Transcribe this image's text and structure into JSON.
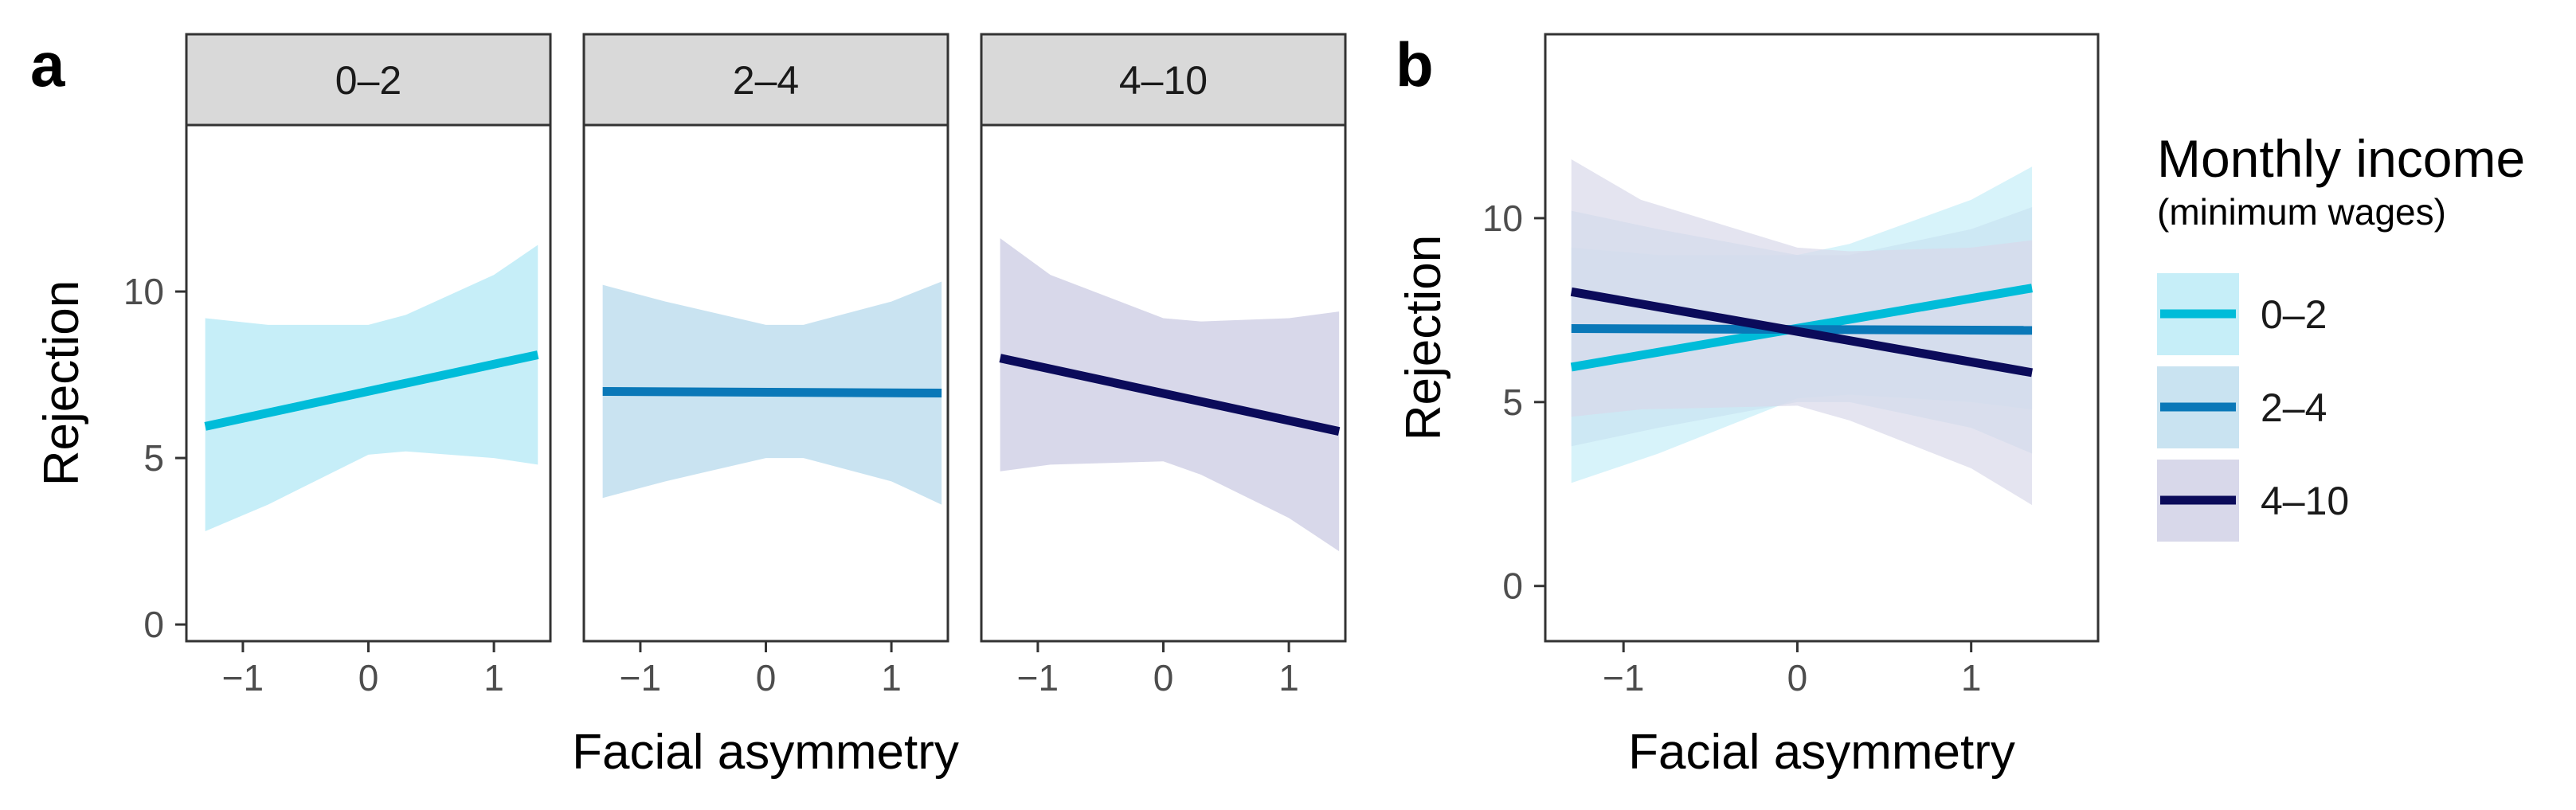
{
  "panel_labels": {
    "a": "a",
    "b": "b"
  },
  "legend": {
    "title": "Monthly income",
    "subtitle": "(minimum wages)"
  },
  "colors": {
    "0–2": "#00bcd9",
    "2–4": "#0a78b8",
    "4–10": "#0b0b5a",
    "band_0–2": "#c6eef8",
    "band_2–4": "#c9e3f1",
    "band_4–10": "#d8d8ea",
    "strip": "#d9d9d9"
  },
  "chart_data": [
    {
      "type": "line",
      "panel": "a",
      "layout": "facet",
      "xlabel": "Facial asymmetry",
      "ylabel": "Rejection",
      "xlim": [
        -1.45,
        1.45
      ],
      "ylim": [
        -0.5,
        15
      ],
      "xticks": [
        -1,
        0,
        1
      ],
      "yticks": [
        0,
        5,
        10
      ],
      "xtick_labels": [
        "−1",
        "0",
        "1"
      ],
      "ytick_labels": [
        "0",
        "5",
        "10"
      ],
      "grid": false,
      "series": [
        {
          "name": "0–2",
          "x": [
            -1.3,
            1.35
          ],
          "y": [
            5.95,
            8.1
          ],
          "band_x": [
            -1.3,
            -0.8,
            0,
            0.3,
            1.0,
            1.35
          ],
          "band_upper": [
            9.2,
            9.0,
            9.0,
            9.3,
            10.5,
            11.4
          ],
          "band_lower": [
            2.8,
            3.6,
            5.1,
            5.2,
            5.0,
            4.8
          ]
        },
        {
          "name": "2–4",
          "x": [
            -1.3,
            1.4
          ],
          "y": [
            7.0,
            6.95
          ],
          "band_x": [
            -1.3,
            -0.8,
            0,
            0.3,
            1.0,
            1.4
          ],
          "band_upper": [
            10.2,
            9.7,
            9.0,
            9.0,
            9.7,
            10.3
          ],
          "band_lower": [
            3.8,
            4.3,
            5.0,
            5.0,
            4.3,
            3.6
          ]
        },
        {
          "name": "4–10",
          "x": [
            -1.3,
            1.4
          ],
          "y": [
            8.0,
            5.8
          ],
          "band_x": [
            -1.3,
            -0.9,
            0,
            0.3,
            1.0,
            1.4
          ],
          "band_upper": [
            11.6,
            10.5,
            9.2,
            9.1,
            9.2,
            9.4
          ],
          "band_lower": [
            4.6,
            4.8,
            4.9,
            4.5,
            3.2,
            2.2
          ]
        }
      ],
      "facets": [
        "0–2",
        "2–4",
        "4–10"
      ]
    },
    {
      "type": "line",
      "panel": "b",
      "layout": "overlay",
      "xlabel": "Facial asymmetry",
      "ylabel": "Rejection",
      "xlim": [
        -1.45,
        1.73
      ],
      "ylim": [
        -1.5,
        15
      ],
      "xticks": [
        -1,
        0,
        1
      ],
      "yticks": [
        0,
        5,
        10
      ],
      "xtick_labels": [
        "−1",
        "0",
        "1"
      ],
      "ytick_labels": [
        "0",
        "5",
        "10"
      ],
      "grid": false,
      "legend_position": "right",
      "series": [
        {
          "name": "0–2",
          "x": [
            -1.3,
            1.35
          ],
          "y": [
            5.95,
            8.1
          ],
          "band_x": [
            -1.3,
            -0.8,
            0,
            0.3,
            1.0,
            1.35
          ],
          "band_upper": [
            9.2,
            9.0,
            9.0,
            9.3,
            10.5,
            11.4
          ],
          "band_lower": [
            2.8,
            3.6,
            5.1,
            5.2,
            5.0,
            4.8
          ]
        },
        {
          "name": "2–4",
          "x": [
            -1.3,
            1.35
          ],
          "y": [
            7.0,
            6.95
          ],
          "band_x": [
            -1.3,
            -0.8,
            0,
            0.3,
            1.0,
            1.35
          ],
          "band_upper": [
            10.2,
            9.7,
            9.0,
            9.0,
            9.7,
            10.3
          ],
          "band_lower": [
            3.8,
            4.3,
            5.0,
            5.0,
            4.3,
            3.6
          ]
        },
        {
          "name": "4–10",
          "x": [
            -1.3,
            1.35
          ],
          "y": [
            8.0,
            5.8
          ],
          "band_x": [
            -1.3,
            -0.9,
            0,
            0.3,
            1.0,
            1.35
          ],
          "band_upper": [
            11.6,
            10.5,
            9.2,
            9.1,
            9.2,
            9.4
          ],
          "band_lower": [
            4.6,
            4.8,
            4.9,
            4.5,
            3.2,
            2.2
          ]
        }
      ]
    }
  ]
}
